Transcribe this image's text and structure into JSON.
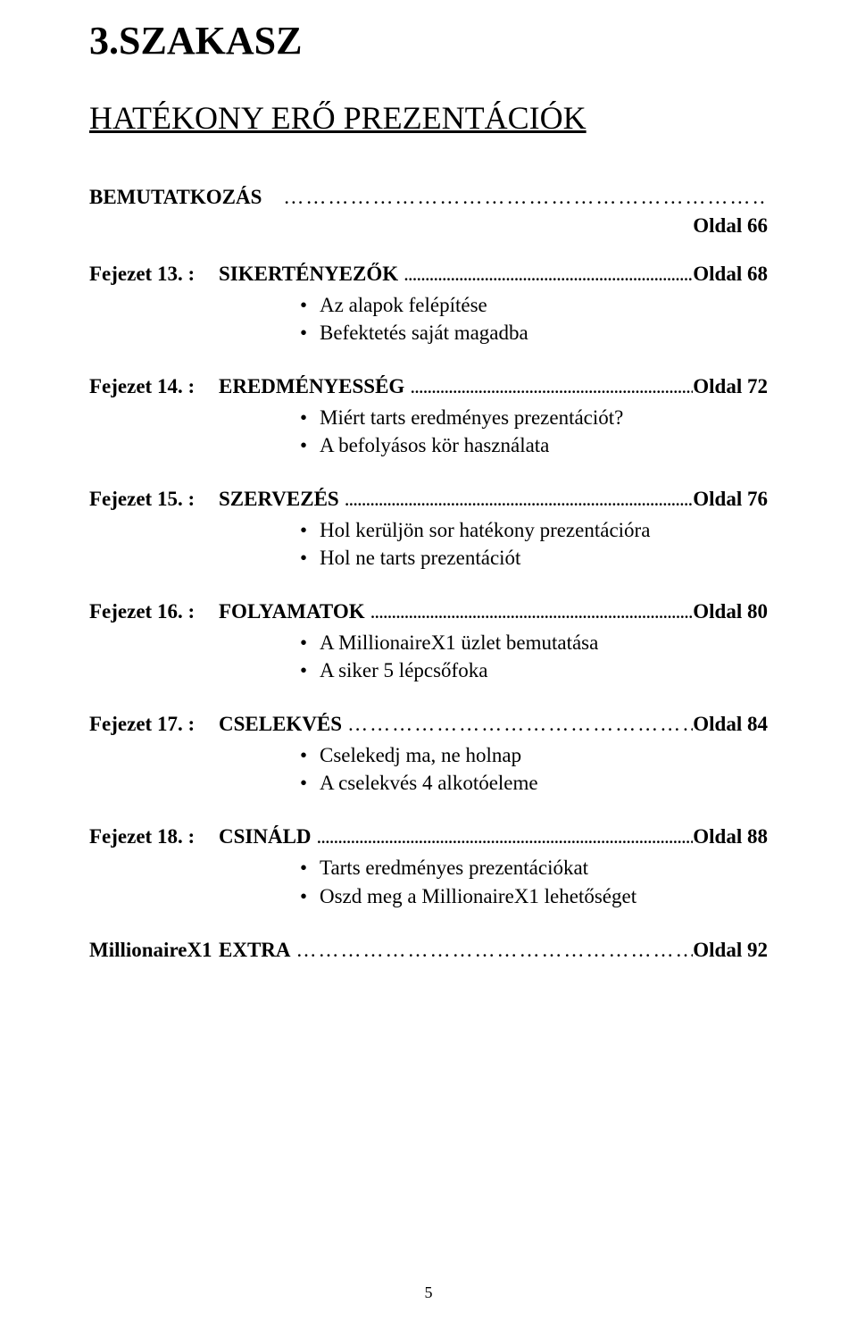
{
  "section_title": "3.SZAKASZ",
  "subtitle": "HATÉKONY ERŐ PREZENTÁCIÓK",
  "intro": {
    "title": "BEMUTATKOZÁS",
    "page": "Oldal 66"
  },
  "chapters": [
    {
      "label": "Fejezet 13. :",
      "title": "SIKERTÉNYEZŐK",
      "page": "Oldal 68",
      "dot_style": "dense",
      "bullets": [
        "Az alapok felépítése",
        "Befektetés saját magadba"
      ]
    },
    {
      "label": "Fejezet 14. :",
      "title": "EREDMÉNYESSÉG",
      "page": "Oldal 72",
      "dot_style": "dense",
      "bullets": [
        "Miért tarts eredményes prezentációt?",
        "A befolyásos kör használata"
      ]
    },
    {
      "label": "Fejezet 15. :",
      "title": "SZERVEZÉS",
      "page": "Oldal 76",
      "dot_style": "dense",
      "bullets": [
        "Hol kerüljön sor hatékony prezentációra",
        "Hol ne tarts prezentációt"
      ]
    },
    {
      "label": "Fejezet 16. :",
      "title": "FOLYAMATOK",
      "page": "Oldal 80",
      "dot_style": "dense",
      "bullets": [
        "A MillionaireX1 üzlet bemutatása",
        "A siker 5 lépcsőfoka"
      ]
    },
    {
      "label": "Fejezet 17. :",
      "title": "CSELEKVÉS",
      "page": "Oldal 84",
      "dot_style": "sparse",
      "bullets": [
        "Cselekedj ma, ne holnap",
        "A cselekvés 4 alkotóeleme"
      ]
    },
    {
      "label": "Fejezet 18. :",
      "title": "CSINÁLD",
      "page": "Oldal 88",
      "dot_style": "dense",
      "bullets": [
        "Tarts eredményes prezentációkat",
        "Oszd meg a MillionaireX1 lehetőséget"
      ]
    }
  ],
  "extra": {
    "label": "MillionaireX1",
    "title": "EXTRA",
    "page": "Oldal 92"
  },
  "page_number": "5",
  "dot_fill_dense": "..................................................................................................................................",
  "dot_fill_sparse": "………………………………………………………………"
}
